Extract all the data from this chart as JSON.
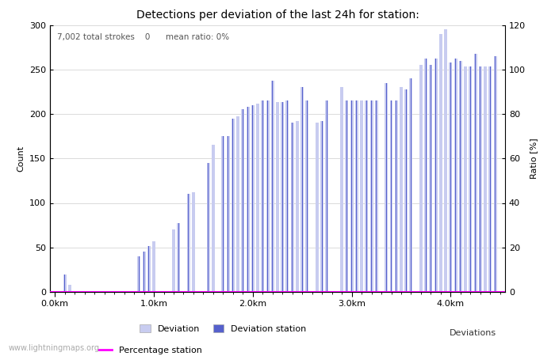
{
  "title": "Detections per deviation of the last 24h for station:",
  "subtitle": "7,002 total strokes    0      mean ratio: 0%",
  "xlabel": "Deviations",
  "ylabel_left": "Count",
  "ylabel_right": "Ratio [%]",
  "ylim_left": [
    0,
    300
  ],
  "ylim_right": [
    0,
    120
  ],
  "yticks_left": [
    0,
    50,
    100,
    150,
    200,
    250,
    300
  ],
  "yticks_right": [
    0,
    20,
    40,
    60,
    80,
    100,
    120
  ],
  "bar_color_light": "#c8ccf0",
  "bar_color_dark": "#5560cc",
  "watermark": "www.lightningmaps.org",
  "legend_labels": [
    "Deviation",
    "Deviation station",
    "Percentage station"
  ],
  "legend_colors": [
    "#c8ccf0",
    "#5560cc",
    "#ff00ff"
  ],
  "xtick_labels": [
    "0.0km",
    "1.0km",
    "2.0km",
    "3.0km",
    "4.0km"
  ],
  "xtick_positions": [
    0.0,
    1.0,
    2.0,
    3.0,
    4.0
  ],
  "bar_positions": [
    0.1,
    0.15,
    0.85,
    0.9,
    0.95,
    1.0,
    1.2,
    1.25,
    1.35,
    1.4,
    1.55,
    1.6,
    1.7,
    1.75,
    1.8,
    1.85,
    1.9,
    1.95,
    2.0,
    2.05,
    2.1,
    2.15,
    2.2,
    2.25,
    2.3,
    2.35,
    2.4,
    2.45,
    2.5,
    2.55,
    2.65,
    2.7,
    2.75,
    2.9,
    2.95,
    3.0,
    3.05,
    3.1,
    3.15,
    3.2,
    3.25,
    3.35,
    3.4,
    3.45,
    3.5,
    3.55,
    3.6,
    3.7,
    3.75,
    3.8,
    3.85,
    3.9,
    3.95,
    4.0,
    4.05,
    4.1,
    4.15,
    4.2,
    4.25,
    4.3,
    4.35,
    4.4,
    4.45
  ],
  "bar_heights": [
    20,
    8,
    40,
    45,
    52,
    57,
    70,
    77,
    110,
    112,
    145,
    165,
    175,
    175,
    195,
    197,
    205,
    208,
    210,
    212,
    215,
    215,
    237,
    213,
    213,
    215,
    190,
    192,
    230,
    215,
    190,
    192,
    215,
    230,
    215,
    215,
    215,
    215,
    215,
    215,
    215,
    235,
    215,
    215,
    230,
    228,
    240,
    255,
    262,
    255,
    262,
    290,
    295,
    258,
    262,
    260,
    253,
    253,
    268,
    253,
    253,
    253,
    265
  ],
  "background_color": "#ffffff",
  "grid_color": "#cccccc",
  "title_fontsize": 10,
  "label_fontsize": 8,
  "tick_fontsize": 8,
  "xlim": [
    -0.05,
    4.55
  ]
}
